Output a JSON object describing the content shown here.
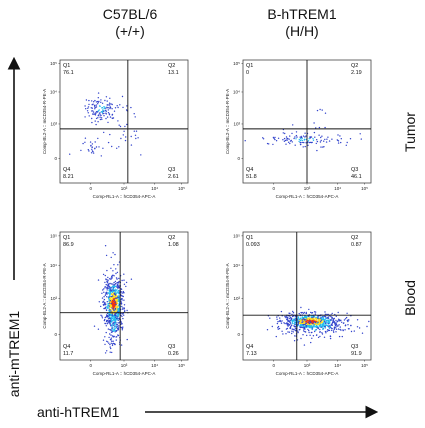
{
  "headers": {
    "col1_line1": "C57BL/6",
    "col1_line2": "(+/+)",
    "col2_line1": "B-hTREM1",
    "col2_line2": "(H/H)",
    "row1": "Tumor",
    "row2": "Blood",
    "y_axis": "anti-mTREM1",
    "x_axis": "anti-hTREM1"
  },
  "panel_axis": {
    "x_label": "Comp-RL1-A :: hCD354-APC-A",
    "y_label": "Comp-BL2-A :: mCD354-R-PE-A",
    "x_ticks": [
      "0",
      "10³",
      "10⁴",
      "10⁵"
    ],
    "y_ticks": [
      "10⁵",
      "10⁴",
      "10³",
      "0"
    ]
  },
  "colors": {
    "density_low": "#3344cc",
    "density_mid": "#22bbee",
    "density_high": "#ffdd22",
    "density_peak": "#ee3311"
  },
  "chart_data": [
    {
      "type": "scatter",
      "row": "Tumor",
      "column": "C57BL/6 (+/+)",
      "quadrants": {
        "Q1": "Q1",
        "Q1_value": "76.1",
        "Q2": "Q2",
        "Q2_value": "13.1",
        "Q3": "Q3",
        "Q3_value": "2.61",
        "Q4": "Q4",
        "Q4_value": "8.21"
      },
      "gate": {
        "x": 0.53,
        "y": 0.56
      },
      "clusters": [
        {
          "cx": 0.32,
          "cy": 0.4,
          "sx": 0.06,
          "sy": 0.05,
          "n": 120
        },
        {
          "cx": 0.48,
          "cy": 0.55,
          "sx": 0.1,
          "sy": 0.15,
          "n": 40
        },
        {
          "cx": 0.25,
          "cy": 0.72,
          "sx": 0.05,
          "sy": 0.04,
          "n": 25
        }
      ]
    },
    {
      "type": "scatter",
      "row": "Tumor",
      "column": "B-hTREM1 (H/H)",
      "quadrants": {
        "Q1": "Q1",
        "Q1_value": "0",
        "Q2": "Q2",
        "Q2_value": "2.19",
        "Q3": "Q3",
        "Q3_value": "46.1",
        "Q4": "Q4",
        "Q4_value": "51.8"
      },
      "gate": {
        "x": 0.5,
        "y": 0.56
      },
      "clusters": [
        {
          "cx": 0.48,
          "cy": 0.65,
          "sx": 0.16,
          "sy": 0.025,
          "n": 110
        },
        {
          "cx": 0.55,
          "cy": 0.55,
          "sx": 0.1,
          "sy": 0.08,
          "n": 15
        }
      ]
    },
    {
      "type": "scatter",
      "row": "Blood",
      "column": "C57BL/6 (+/+)",
      "quadrants": {
        "Q1": "Q1",
        "Q1_value": "86.9",
        "Q2": "Q2",
        "Q2_value": "1.08",
        "Q3": "Q3",
        "Q3_value": "0.26",
        "Q4": "Q4",
        "Q4_value": "11.7"
      },
      "gate": {
        "x": 0.47,
        "y": 0.63
      },
      "clusters": [
        {
          "cx": 0.42,
          "cy": 0.56,
          "sx": 0.035,
          "sy": 0.09,
          "n": 650
        },
        {
          "cx": 0.42,
          "cy": 0.72,
          "sx": 0.04,
          "sy": 0.1,
          "n": 160
        },
        {
          "cx": 0.42,
          "cy": 0.4,
          "sx": 0.05,
          "sy": 0.1,
          "n": 60
        }
      ]
    },
    {
      "type": "scatter",
      "row": "Blood",
      "column": "B-hTREM1 (H/H)",
      "quadrants": {
        "Q1": "Q1",
        "Q1_value": "0.093",
        "Q2": "Q2",
        "Q2_value": "0.87",
        "Q3": "Q3",
        "Q3_value": "91.9",
        "Q4": "Q4",
        "Q4_value": "7.13"
      },
      "gate": {
        "x": 0.42,
        "y": 0.65
      },
      "clusters": [
        {
          "cx": 0.53,
          "cy": 0.7,
          "sx": 0.1,
          "sy": 0.03,
          "n": 650
        },
        {
          "cx": 0.6,
          "cy": 0.74,
          "sx": 0.14,
          "sy": 0.05,
          "n": 170
        },
        {
          "cx": 0.4,
          "cy": 0.72,
          "sx": 0.05,
          "sy": 0.06,
          "n": 60
        }
      ]
    }
  ]
}
